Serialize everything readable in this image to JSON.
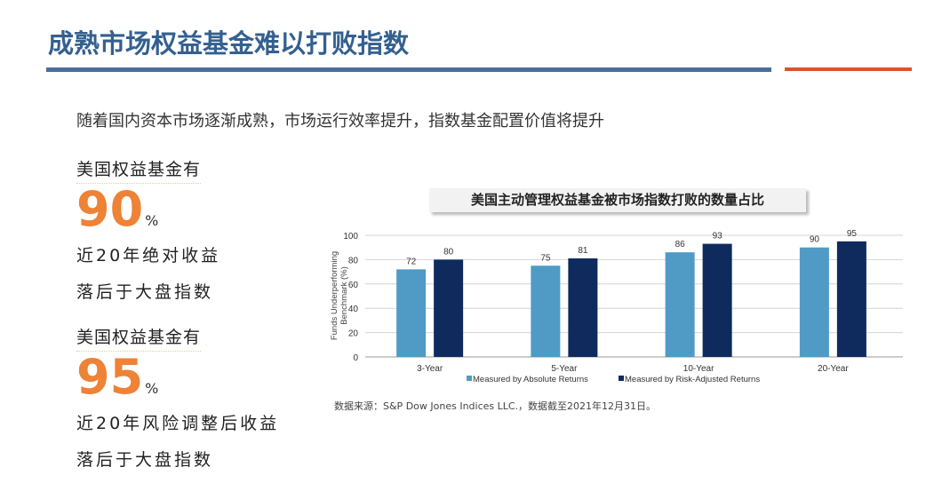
{
  "header": {
    "title": "成熟市场权益基金难以打败指数"
  },
  "subtitle": "随着国内资本市场逐渐成熟，市场运行效率提升，指数基金配置价值将提升",
  "stats": [
    {
      "head": "美国权益基金有",
      "value": "90",
      "unit": "%",
      "line1": "近20年绝对收益",
      "line2": "落后于大盘指数"
    },
    {
      "head": "美国权益基金有",
      "value": "95",
      "unit": "%",
      "line1": "近20年风险调整后收益",
      "line2": "落后于大盘指数"
    }
  ],
  "colors": {
    "title": "#34608f",
    "accent": "#ee8236",
    "series_light": "#4f9bc6",
    "series_dark": "#0f2a5c"
  },
  "chart_data": {
    "type": "bar",
    "title": "美国主动管理权益基金被市场指数打败的数量占比",
    "categories": [
      "3-Year",
      "5-Year",
      "10-Year",
      "20-Year"
    ],
    "series": [
      {
        "name": "Measured by Absolute Returns",
        "values": [
          72,
          75,
          86,
          90
        ]
      },
      {
        "name": "Measured by Risk-Adjusted Returns",
        "values": [
          80,
          81,
          93,
          95
        ]
      }
    ],
    "ylabel": "Funds Underperforming Benchmark (%)",
    "ylim": [
      0,
      100
    ],
    "yticks": [
      0,
      20,
      40,
      60,
      80,
      100
    ],
    "grid": true,
    "legend": "bottom"
  },
  "source": "数据来源：S&P Dow Jones Indices LLC.，数据截至2021年12月31日。"
}
